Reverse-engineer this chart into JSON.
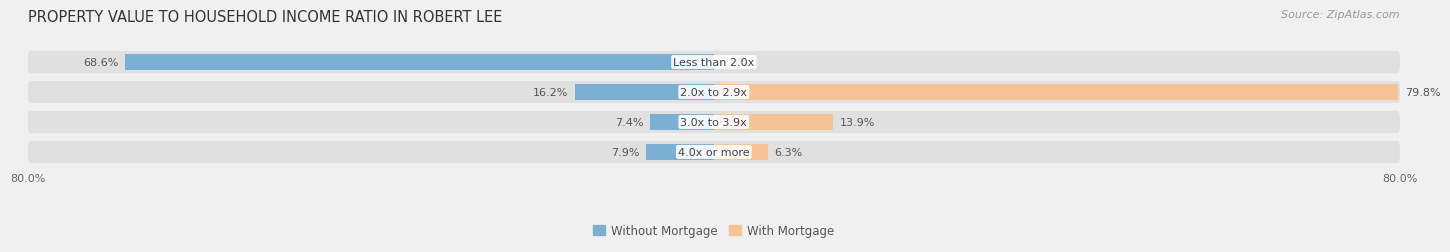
{
  "title": "PROPERTY VALUE TO HOUSEHOLD INCOME RATIO IN ROBERT LEE",
  "source": "Source: ZipAtlas.com",
  "categories": [
    "Less than 2.0x",
    "2.0x to 2.9x",
    "3.0x to 3.9x",
    "4.0x or more"
  ],
  "without_mortgage": [
    68.6,
    16.2,
    7.4,
    7.9
  ],
  "with_mortgage": [
    0.0,
    79.8,
    13.9,
    6.3
  ],
  "color_without": "#7bafd4",
  "color_with": "#f5c394",
  "bar_height": 0.52,
  "xlim": [
    -80.0,
    80.0
  ],
  "background_color": "#f0f0f0",
  "bar_background": "#e0e0e0",
  "title_fontsize": 10.5,
  "source_fontsize": 8,
  "label_fontsize": 8,
  "category_fontsize": 8,
  "tick_fontsize": 8,
  "legend_fontsize": 8.5
}
